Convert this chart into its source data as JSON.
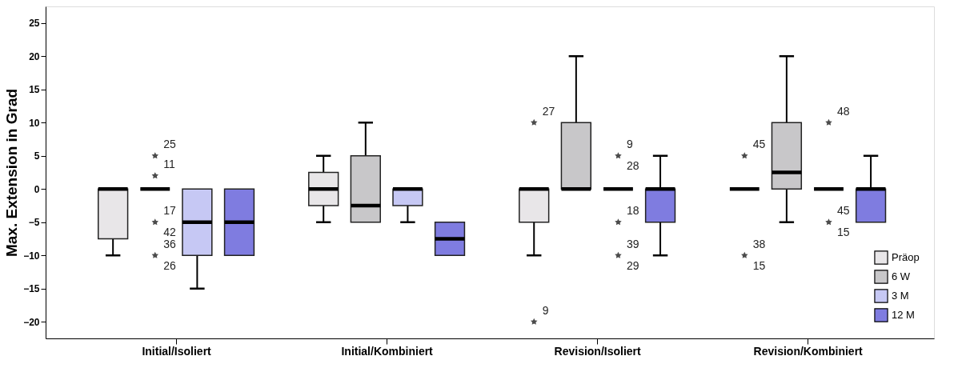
{
  "chart_data": {
    "type": "box",
    "ylabel": "Max. Extension in Grad",
    "categories": [
      "Initial/Isoliert",
      "Initial/Kombiniert",
      "Revision/Isoliert",
      "Revision/Kombiniert"
    ],
    "ylim": [
      -22.5,
      27.5
    ],
    "yticks": [
      -20,
      -15,
      -10,
      -5,
      0,
      5,
      10,
      15,
      20,
      25
    ],
    "grid": false,
    "legend": "bottom right",
    "marker": "star",
    "series": [
      {
        "name": "Präop",
        "color": "#e8e6e8",
        "boxes": [
          {
            "low": -10,
            "q1": -7.5,
            "median": 0,
            "q3": 0,
            "high": 0
          },
          {
            "low": -5,
            "q1": -2.5,
            "median": 0,
            "q3": 2.5,
            "high": 5
          },
          {
            "low": -10,
            "q1": -5,
            "median": 0,
            "q3": 0,
            "high": 0,
            "outliers": [
              10,
              -20
            ]
          },
          {
            "low": 0,
            "q1": 0,
            "median": 0,
            "q3": 0,
            "high": 0,
            "outliers": [
              5,
              -10
            ]
          }
        ]
      },
      {
        "name": "6 W",
        "color": "#c8c7c9",
        "boxes": [
          {
            "low": 0,
            "q1": 0,
            "median": 0,
            "q3": 0,
            "high": 0,
            "outliers": [
              5,
              2,
              -5,
              -10
            ]
          },
          {
            "low": -5,
            "q1": -5,
            "median": -2.5,
            "q3": 5,
            "high": 10
          },
          {
            "low": 0,
            "q1": 0,
            "median": 0,
            "q3": 10,
            "high": 20
          },
          {
            "low": -5,
            "q1": 0,
            "median": 2.5,
            "q3": 10,
            "high": 20
          }
        ]
      },
      {
        "name": "3 M",
        "color": "#c6c8f4",
        "boxes": [
          {
            "low": -15,
            "q1": -10,
            "median": -5,
            "q3": 0,
            "high": 0
          },
          {
            "low": -5,
            "q1": -2.5,
            "median": 0,
            "q3": 0,
            "high": 0
          },
          {
            "low": 0,
            "q1": 0,
            "median": 0,
            "q3": 0,
            "high": 0,
            "outliers": [
              5,
              -5,
              -10
            ]
          },
          {
            "low": 0,
            "q1": 0,
            "median": 0,
            "q3": 0,
            "high": 0,
            "outliers": [
              10,
              -5
            ]
          }
        ]
      },
      {
        "name": "12 M",
        "color": "#7f7ce0",
        "boxes": [
          {
            "low": -10,
            "q1": -10,
            "median": -5,
            "q3": 0,
            "high": 0
          },
          {
            "low": -10,
            "q1": -10,
            "median": -7.5,
            "q3": -5,
            "high": -5
          },
          {
            "low": -10,
            "q1": -5,
            "median": 0,
            "q3": 0,
            "high": 5
          },
          {
            "low": -5,
            "q1": -5,
            "median": 0,
            "q3": 0,
            "high": 5
          }
        ]
      }
    ],
    "annotations": [
      "27",
      "9",
      "45",
      "38",
      "15",
      "25",
      "11",
      "17",
      "42",
      "36",
      "26",
      "9",
      "28",
      "18",
      "39",
      "29",
      "48",
      "45",
      "15"
    ]
  }
}
